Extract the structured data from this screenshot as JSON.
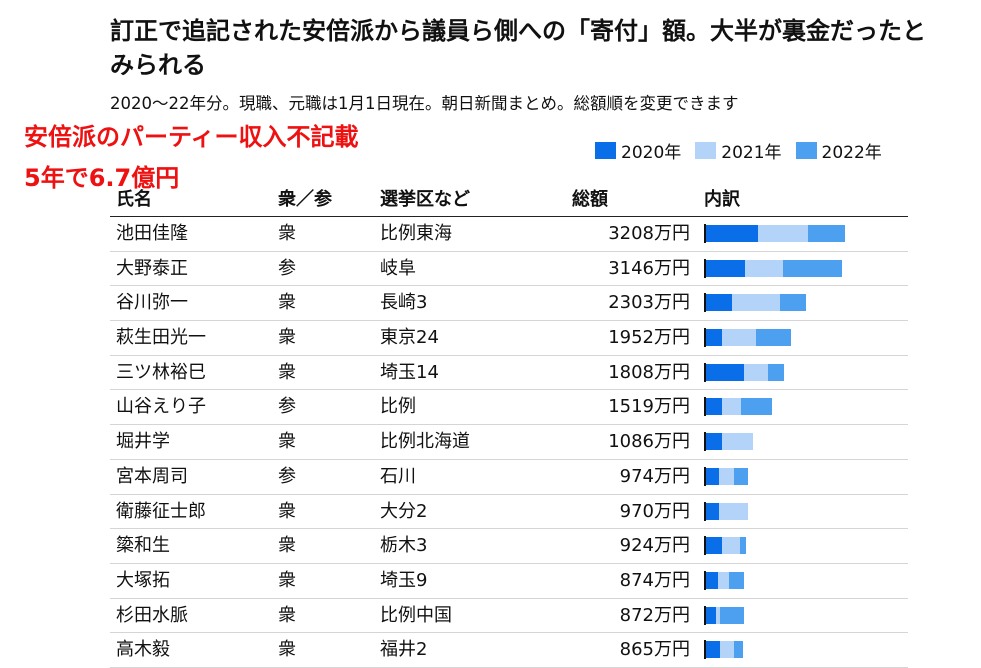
{
  "title": "訂正で追記された安倍派から議員ら側への「寄付」額。大半が裏金だったとみられる",
  "subtitle": "2020～22年分。現職、元職は1月1日現在。朝日新聞まとめ。総額順を変更できます",
  "overlay": {
    "line1": "安倍派のパーティー収入不記載",
    "line2": "5年で6.7億円"
  },
  "colors": {
    "y2020": "#0a6ee8",
    "y2021": "#b3d4f8",
    "y2022": "#4d9ff0",
    "overlay": "#ee1111"
  },
  "chart_data": {
    "type": "bar",
    "stacked": true,
    "orientation": "horizontal",
    "title": "訂正で追記された安倍派から議員ら側への「寄付」額。大半が裏金だったとみられる",
    "unit": "万円",
    "legend_position": "top-right",
    "columns": [
      "氏名",
      "衆／参",
      "選挙区など",
      "総額",
      "内訳"
    ],
    "series": [
      {
        "name": "2020年",
        "color": "#0a6ee8",
        "values": [
          1190,
          890,
          600,
          380,
          880,
          360,
          360,
          300,
          300,
          360,
          270,
          240,
          330
        ]
      },
      {
        "name": "2021年",
        "color": "#b3d4f8",
        "values": [
          1170,
          890,
          1110,
          780,
          560,
          450,
          726,
          354,
          670,
          424,
          254,
          72,
          315
        ]
      },
      {
        "name": "2022年",
        "color": "#4d9ff0",
        "values": [
          848,
          1366,
          593,
          792,
          368,
          709,
          0,
          320,
          0,
          140,
          350,
          560,
          220
        ]
      }
    ],
    "rows": [
      {
        "name": "池田佳隆",
        "house": "衆",
        "district": "比例東海",
        "total": 3208,
        "total_label": "3208万円"
      },
      {
        "name": "大野泰正",
        "house": "参",
        "district": "岐阜",
        "total": 3146,
        "total_label": "3146万円"
      },
      {
        "name": "谷川弥一",
        "house": "衆",
        "district": "長崎3",
        "total": 2303,
        "total_label": "2303万円"
      },
      {
        "name": "萩生田光一",
        "house": "衆",
        "district": "東京24",
        "total": 1952,
        "total_label": "1952万円"
      },
      {
        "name": "三ツ林裕巳",
        "house": "衆",
        "district": "埼玉14",
        "total": 1808,
        "total_label": "1808万円"
      },
      {
        "name": "山谷えり子",
        "house": "参",
        "district": "比例",
        "total": 1519,
        "total_label": "1519万円"
      },
      {
        "name": "堀井学",
        "house": "衆",
        "district": "比例北海道",
        "total": 1086,
        "total_label": "1086万円"
      },
      {
        "name": "宮本周司",
        "house": "参",
        "district": "石川",
        "total": 974,
        "total_label": "974万円"
      },
      {
        "name": "衛藤征士郎",
        "house": "衆",
        "district": "大分2",
        "total": 970,
        "total_label": "970万円"
      },
      {
        "name": "簗和生",
        "house": "衆",
        "district": "栃木3",
        "total": 924,
        "total_label": "924万円"
      },
      {
        "name": "大塚拓",
        "house": "衆",
        "district": "埼玉9",
        "total": 874,
        "total_label": "874万円"
      },
      {
        "name": "杉田水脈",
        "house": "衆",
        "district": "比例中国",
        "total": 872,
        "total_label": "872万円"
      },
      {
        "name": "高木毅",
        "house": "衆",
        "district": "福井2",
        "total": 865,
        "total_label": "865万円"
      }
    ],
    "bar_max": 3208
  }
}
